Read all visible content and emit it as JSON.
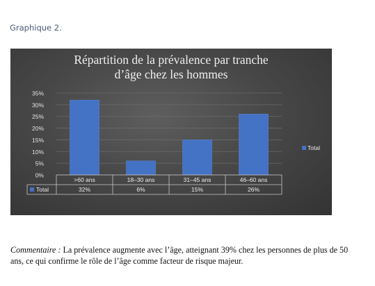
{
  "caption": "Graphique 2.",
  "chart_data": {
    "type": "bar",
    "title_lines": [
      "Répartition de la prévalence par tranche",
      "d’âge chez les hommes"
    ],
    "categories": [
      ">60 ans",
      "18–30 ans",
      "31–45 ans",
      "46–60 ans"
    ],
    "series": [
      {
        "name": "Total",
        "values": [
          32,
          6,
          15,
          26
        ],
        "value_labels": [
          "32%",
          "6%",
          "15%",
          "26%"
        ],
        "color": "#4472c4"
      }
    ],
    "ylim": [
      0,
      35
    ],
    "y_ticks": [
      0,
      5,
      10,
      15,
      20,
      25,
      30,
      35
    ],
    "y_tick_labels": [
      "0%",
      "5%",
      "10%",
      "15%",
      "20%",
      "25%",
      "30%",
      "35%"
    ],
    "legend_label": "Total",
    "legend_position": "right",
    "data_table": true,
    "grid": true
  },
  "comment": {
    "label": "Commentaire :",
    "text": " La prévalence augmente avec l’âge, atteignant 39% chez les personnes de plus de 50 ans, ce qui confirme le rôle de l’âge comme facteur de risque majeur."
  }
}
